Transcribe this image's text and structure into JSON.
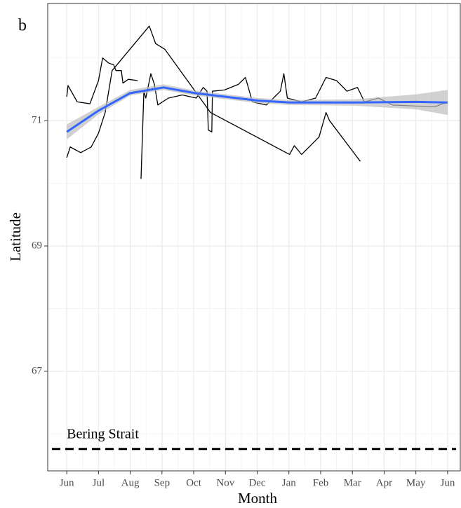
{
  "chart_data": {
    "type": "line",
    "panel_label": "b",
    "x_label": "Month",
    "y_label": "Latitude",
    "xlim": [
      -0.6,
      12.4
    ],
    "xticks": [
      {
        "value": 0,
        "label": "Jun"
      },
      {
        "value": 1,
        "label": "Jul"
      },
      {
        "value": 2,
        "label": "Aug"
      },
      {
        "value": 3,
        "label": "Sep"
      },
      {
        "value": 4,
        "label": "Oct"
      },
      {
        "value": 5,
        "label": "Nov"
      },
      {
        "value": 6,
        "label": "Dec"
      },
      {
        "value": 7,
        "label": "Jan"
      },
      {
        "value": 8,
        "label": "Feb"
      },
      {
        "value": 9,
        "label": "Mar"
      },
      {
        "value": 10,
        "label": "Apr"
      },
      {
        "value": 11,
        "label": "May"
      },
      {
        "value": 12,
        "label": "Jun"
      }
    ],
    "ylim": [
      65.41,
      72.87
    ],
    "yticks": [
      67,
      69,
      71
    ],
    "grid": true,
    "series": [
      {
        "color": "#000000",
        "x": [
          0,
          0.04,
          0.33,
          0.73,
          1.0,
          1.13,
          1.32,
          1.48,
          1.55,
          1.72,
          1.77,
          1.94,
          2.23
        ],
        "values": [
          71.38,
          71.56,
          71.3,
          71.27,
          71.64,
          72.0,
          71.92,
          71.89,
          71.8,
          71.8,
          71.6,
          71.66,
          71.64
        ]
      },
      {
        "color": "#000000",
        "x": [
          0,
          0.11,
          0.44,
          0.77,
          1.0,
          1.21,
          1.43,
          2.6,
          2.8,
          3.09,
          4.53,
          7.02,
          7.17,
          7.4,
          7.95,
          8.17,
          8.28,
          9.25
        ],
        "values": [
          70.41,
          70.58,
          70.49,
          70.58,
          70.8,
          71.13,
          71.8,
          72.51,
          72.23,
          72.14,
          71.13,
          70.46,
          70.6,
          70.46,
          70.74,
          71.13,
          71.0,
          70.35
        ]
      },
      {
        "color": "#000000",
        "x": [
          2.34,
          2.43,
          2.49,
          2.65,
          2.76,
          2.87,
          3.2,
          3.64,
          4.08,
          4.3,
          4.42,
          4.46,
          4.57,
          4.59,
          4.97,
          5.41,
          5.63,
          5.85,
          6.29,
          6.73,
          6.84,
          6.95,
          7.4,
          7.84,
          8.17,
          8.5,
          8.83,
          9.16,
          9.38,
          9.82,
          10.26,
          11.59,
          12.0
        ],
        "values": [
          70.07,
          71.47,
          71.36,
          71.75,
          71.58,
          71.25,
          71.36,
          71.41,
          71.36,
          71.53,
          71.47,
          70.85,
          70.82,
          71.47,
          71.49,
          71.58,
          71.69,
          71.3,
          71.25,
          71.47,
          71.75,
          71.36,
          71.3,
          71.36,
          71.69,
          71.64,
          71.47,
          71.53,
          71.3,
          71.36,
          71.25,
          71.22,
          71.3
        ]
      },
      {
        "color": "#3366ff",
        "ribbon_color": "#bdbdbd",
        "x": [
          0,
          1,
          2,
          3.05,
          4.04,
          5.03,
          6.03,
          7.02,
          9.03,
          11.02,
          12
        ],
        "values": [
          70.82,
          71.16,
          71.44,
          71.53,
          71.44,
          71.38,
          71.32,
          71.29,
          71.29,
          71.3,
          71.29
        ],
        "lower": [
          70.7,
          71.1,
          71.4,
          71.49,
          71.4,
          71.34,
          71.28,
          71.25,
          71.24,
          71.18,
          71.09
        ],
        "upper": [
          70.94,
          71.22,
          71.49,
          71.58,
          71.48,
          71.42,
          71.36,
          71.33,
          71.34,
          71.42,
          71.49
        ]
      }
    ],
    "annotations": [
      {
        "text": "Bering Strait",
        "y": 65.76
      }
    ]
  }
}
